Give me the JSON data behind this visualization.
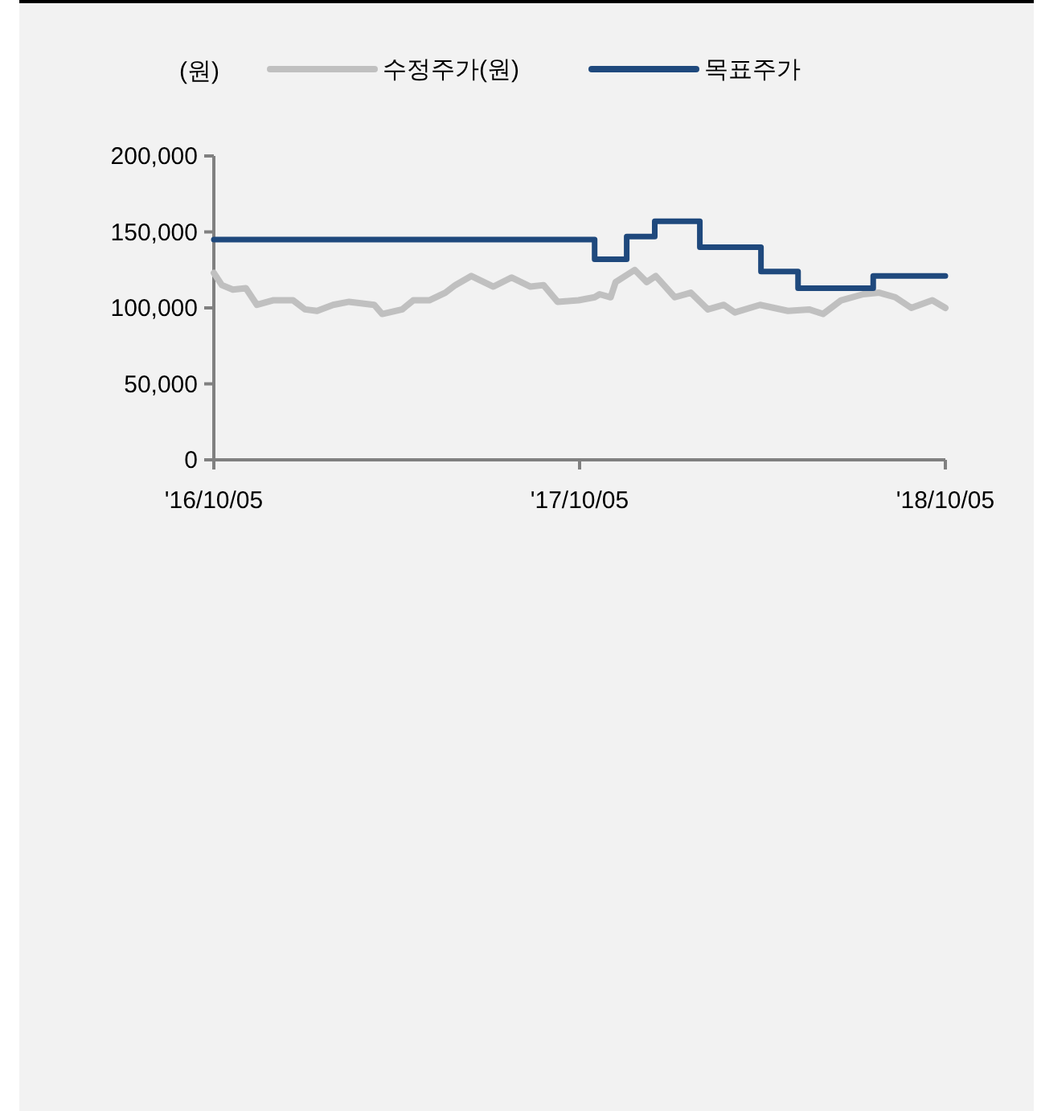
{
  "chart_data": {
    "type": "line",
    "ylabel": "(원)",
    "xlim": [
      "2016-10-05",
      "2018-10-05"
    ],
    "xticks": [
      {
        "value": "2016-10-05",
        "label": "'16/10/05"
      },
      {
        "value": "2017-10-05",
        "label": "'17/10/05"
      },
      {
        "value": "2018-10-05",
        "label": "'18/10/05"
      }
    ],
    "ylim": [
      0,
      200000
    ],
    "yticks": [
      {
        "value": 0,
        "label": "0"
      },
      {
        "value": 50000,
        "label": "50,000"
      },
      {
        "value": 100000,
        "label": "100,000"
      },
      {
        "value": 150000,
        "label": "150,000"
      },
      {
        "value": 200000,
        "label": "200,000"
      }
    ],
    "grid": false,
    "legend": "top",
    "marker": "none",
    "series": [
      {
        "name": "수정주가(원)",
        "color": "#c0c0c0",
        "x": [
          "2016-10-05",
          "2016-10-13",
          "2016-10-24",
          "2016-11-06",
          "2016-11-17",
          "2016-12-03",
          "2016-12-23",
          "2017-01-04",
          "2017-01-16",
          "2017-02-01",
          "2017-02-17",
          "2017-03-14",
          "2017-03-22",
          "2017-04-11",
          "2017-04-22",
          "2017-05-08",
          "2017-05-24",
          "2017-06-03",
          "2017-06-19",
          "2017-07-11",
          "2017-07-29",
          "2017-08-17",
          "2017-08-30",
          "2017-09-13",
          "2017-10-04",
          "2017-10-20",
          "2017-10-25",
          "2017-11-05",
          "2017-11-10",
          "2017-11-29",
          "2017-12-11",
          "2017-12-20",
          "2018-01-08",
          "2018-01-24",
          "2018-02-10",
          "2018-02-26",
          "2018-03-09",
          "2018-04-03",
          "2018-05-01",
          "2018-05-22",
          "2018-06-05",
          "2018-06-23",
          "2018-07-15",
          "2018-07-31",
          "2018-08-16",
          "2018-09-01",
          "2018-09-22",
          "2018-10-05"
        ],
        "values": [
          123000,
          115000,
          112000,
          113000,
          102000,
          105000,
          105000,
          99000,
          98000,
          102000,
          104000,
          102000,
          96000,
          99000,
          105000,
          105000,
          110000,
          115000,
          121000,
          114000,
          120000,
          114000,
          115000,
          104000,
          105000,
          107000,
          109000,
          107000,
          117000,
          125000,
          117000,
          121000,
          107000,
          110000,
          99000,
          102000,
          97000,
          102000,
          98000,
          99000,
          96000,
          105000,
          109000,
          110000,
          107000,
          100000,
          105000,
          100000
        ]
      },
      {
        "name": "목표주가",
        "type": "step",
        "color": "#1f497d",
        "x": [
          "2016-10-05",
          "2017-10-20",
          "2017-11-21",
          "2017-12-19",
          "2018-02-02",
          "2018-04-04",
          "2018-05-11",
          "2018-07-25",
          "2018-10-05"
        ],
        "values": [
          145000,
          132000,
          147000,
          157000,
          140000,
          124000,
          113000,
          121000,
          121000
        ]
      }
    ]
  }
}
